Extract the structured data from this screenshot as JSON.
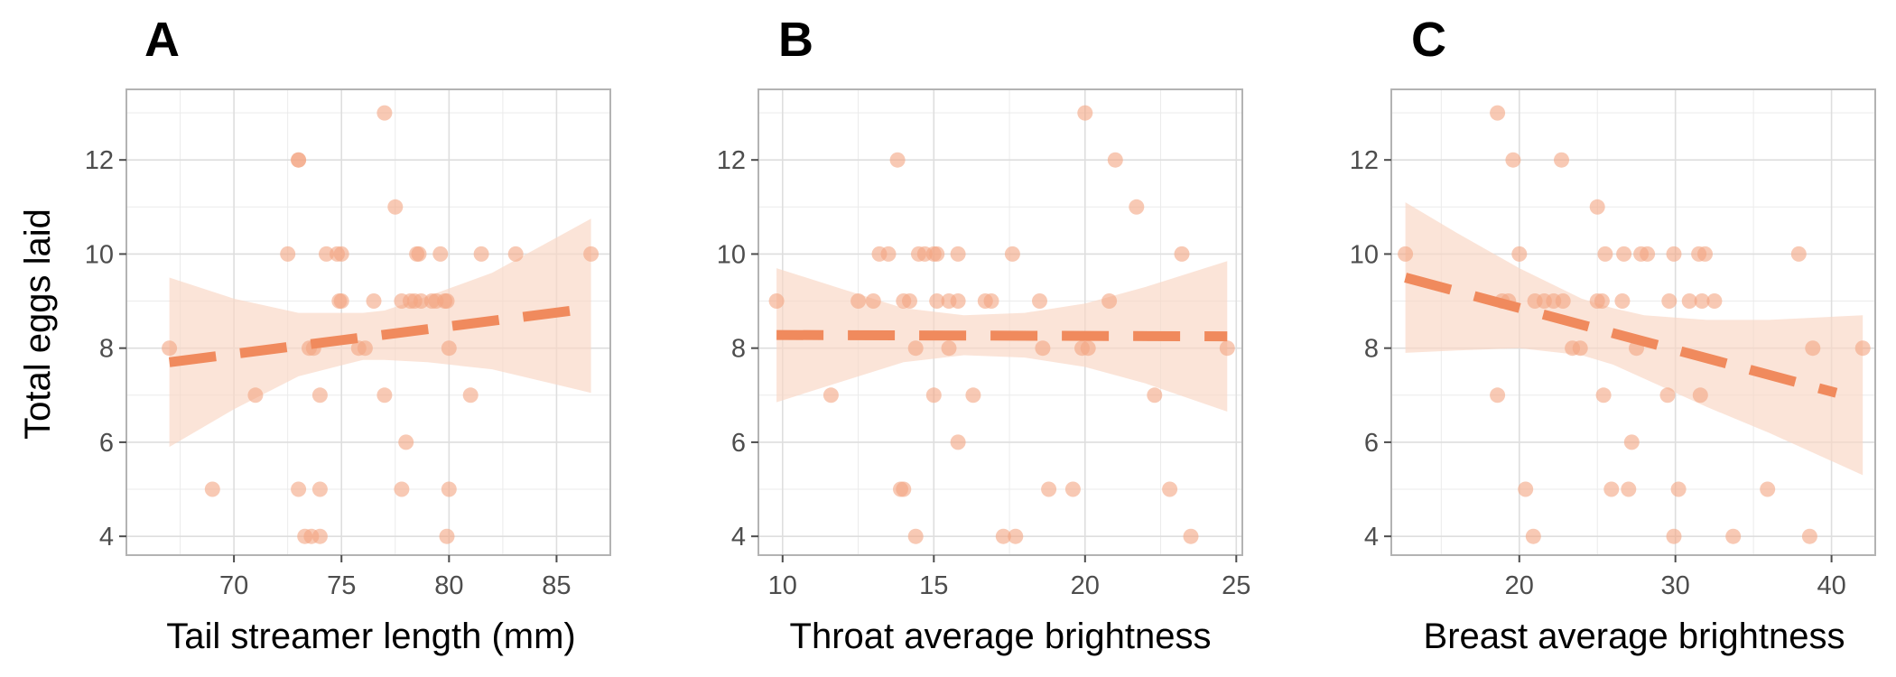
{
  "figure": {
    "ylabel": "Total eggs laid",
    "point_color": "#f4a582",
    "line_color": "#f08a5d",
    "band_color": "#f9d6c3"
  },
  "chart_data": [
    {
      "type": "scatter",
      "panel": "A",
      "xlabel": "Tail streamer length (mm)",
      "ylabel": "Total eggs laid",
      "xlim": [
        65,
        87.5
      ],
      "ylim": [
        3.6,
        13.5
      ],
      "xticks": [
        70,
        75,
        80,
        85
      ],
      "yticks": [
        4,
        6,
        8,
        10,
        12
      ],
      "grid": true,
      "points": [
        {
          "x": 67.0,
          "y": 8
        },
        {
          "x": 69.0,
          "y": 5
        },
        {
          "x": 71.0,
          "y": 7
        },
        {
          "x": 72.5,
          "y": 10
        },
        {
          "x": 73.0,
          "y": 12
        },
        {
          "x": 73.0,
          "y": 12
        },
        {
          "x": 73.0,
          "y": 5
        },
        {
          "x": 73.3,
          "y": 4
        },
        {
          "x": 73.6,
          "y": 4
        },
        {
          "x": 73.5,
          "y": 8
        },
        {
          "x": 73.7,
          "y": 8
        },
        {
          "x": 74.0,
          "y": 7
        },
        {
          "x": 74.0,
          "y": 5
        },
        {
          "x": 74.0,
          "y": 4
        },
        {
          "x": 74.3,
          "y": 10
        },
        {
          "x": 74.8,
          "y": 10
        },
        {
          "x": 75.0,
          "y": 10
        },
        {
          "x": 74.9,
          "y": 9
        },
        {
          "x": 75.0,
          "y": 9
        },
        {
          "x": 75.8,
          "y": 8
        },
        {
          "x": 76.1,
          "y": 8
        },
        {
          "x": 76.5,
          "y": 9
        },
        {
          "x": 77.0,
          "y": 13
        },
        {
          "x": 77.0,
          "y": 7
        },
        {
          "x": 77.5,
          "y": 11
        },
        {
          "x": 77.8,
          "y": 5
        },
        {
          "x": 77.8,
          "y": 9
        },
        {
          "x": 78.0,
          "y": 6
        },
        {
          "x": 78.2,
          "y": 9
        },
        {
          "x": 78.4,
          "y": 9
        },
        {
          "x": 78.5,
          "y": 10
        },
        {
          "x": 78.6,
          "y": 10
        },
        {
          "x": 78.7,
          "y": 9
        },
        {
          "x": 79.2,
          "y": 9
        },
        {
          "x": 79.4,
          "y": 9
        },
        {
          "x": 79.6,
          "y": 10
        },
        {
          "x": 79.8,
          "y": 9
        },
        {
          "x": 79.9,
          "y": 9
        },
        {
          "x": 79.9,
          "y": 4
        },
        {
          "x": 80.0,
          "y": 8
        },
        {
          "x": 80.0,
          "y": 5
        },
        {
          "x": 81.0,
          "y": 7
        },
        {
          "x": 81.5,
          "y": 10
        },
        {
          "x": 83.1,
          "y": 10
        },
        {
          "x": 86.6,
          "y": 10
        }
      ],
      "fit": {
        "x": [
          67.0,
          86.6
        ],
        "y": [
          7.7,
          8.85
        ]
      },
      "band": {
        "x": [
          67.0,
          70,
          73,
          76,
          77,
          79,
          82,
          86.6
        ],
        "lower": [
          5.9,
          6.7,
          7.4,
          7.75,
          7.75,
          7.7,
          7.55,
          7.05
        ],
        "upper": [
          9.5,
          9.05,
          8.75,
          8.75,
          8.8,
          9.1,
          9.6,
          10.75
        ]
      }
    },
    {
      "type": "scatter",
      "panel": "B",
      "xlabel": "Throat average brightness",
      "ylabel": "",
      "xlim": [
        9.2,
        25.2
      ],
      "ylim": [
        3.6,
        13.5
      ],
      "xticks": [
        10,
        15,
        20,
        25
      ],
      "yticks": [
        4,
        6,
        8,
        10,
        12
      ],
      "grid": true,
      "points": [
        {
          "x": 9.8,
          "y": 9
        },
        {
          "x": 11.6,
          "y": 7
        },
        {
          "x": 12.5,
          "y": 9
        },
        {
          "x": 13.0,
          "y": 9
        },
        {
          "x": 13.2,
          "y": 10
        },
        {
          "x": 13.5,
          "y": 10
        },
        {
          "x": 13.8,
          "y": 12
        },
        {
          "x": 13.9,
          "y": 5
        },
        {
          "x": 14.0,
          "y": 5
        },
        {
          "x": 14.0,
          "y": 9
        },
        {
          "x": 14.2,
          "y": 9
        },
        {
          "x": 14.5,
          "y": 10
        },
        {
          "x": 14.4,
          "y": 8
        },
        {
          "x": 14.4,
          "y": 4
        },
        {
          "x": 14.7,
          "y": 10
        },
        {
          "x": 15.0,
          "y": 10
        },
        {
          "x": 15.1,
          "y": 10
        },
        {
          "x": 15.0,
          "y": 7
        },
        {
          "x": 15.1,
          "y": 9
        },
        {
          "x": 15.5,
          "y": 8
        },
        {
          "x": 15.5,
          "y": 9
        },
        {
          "x": 15.8,
          "y": 9
        },
        {
          "x": 15.8,
          "y": 10
        },
        {
          "x": 15.8,
          "y": 6
        },
        {
          "x": 16.3,
          "y": 7
        },
        {
          "x": 16.7,
          "y": 9
        },
        {
          "x": 16.9,
          "y": 9
        },
        {
          "x": 17.3,
          "y": 4
        },
        {
          "x": 17.6,
          "y": 10
        },
        {
          "x": 17.7,
          "y": 4
        },
        {
          "x": 18.5,
          "y": 9
        },
        {
          "x": 18.6,
          "y": 8
        },
        {
          "x": 18.8,
          "y": 5
        },
        {
          "x": 19.6,
          "y": 5
        },
        {
          "x": 20.0,
          "y": 13
        },
        {
          "x": 19.9,
          "y": 8
        },
        {
          "x": 20.1,
          "y": 8
        },
        {
          "x": 20.8,
          "y": 9
        },
        {
          "x": 21.0,
          "y": 12
        },
        {
          "x": 21.7,
          "y": 11
        },
        {
          "x": 22.3,
          "y": 7
        },
        {
          "x": 22.8,
          "y": 5
        },
        {
          "x": 23.2,
          "y": 10
        },
        {
          "x": 23.5,
          "y": 4
        },
        {
          "x": 24.7,
          "y": 8
        }
      ],
      "fit": {
        "x": [
          9.8,
          24.7
        ],
        "y": [
          8.28,
          8.25
        ]
      },
      "band": {
        "x": [
          9.8,
          12,
          14,
          16,
          18,
          20,
          22,
          24.7
        ],
        "lower": [
          6.85,
          7.3,
          7.7,
          7.85,
          7.8,
          7.6,
          7.25,
          6.65
        ],
        "upper": [
          9.7,
          9.25,
          8.85,
          8.7,
          8.75,
          8.95,
          9.3,
          9.85
        ]
      }
    },
    {
      "type": "scatter",
      "panel": "C",
      "xlabel": "Breast average brightness",
      "ylabel": "",
      "xlim": [
        11.8,
        42.8
      ],
      "ylim": [
        3.6,
        13.5
      ],
      "xticks": [
        20,
        30,
        40
      ],
      "yticks": [
        4,
        6,
        8,
        10,
        12
      ],
      "grid": true,
      "points": [
        {
          "x": 12.7,
          "y": 10
        },
        {
          "x": 18.6,
          "y": 13
        },
        {
          "x": 18.6,
          "y": 7
        },
        {
          "x": 18.9,
          "y": 9
        },
        {
          "x": 19.3,
          "y": 9
        },
        {
          "x": 19.6,
          "y": 12
        },
        {
          "x": 20.0,
          "y": 10
        },
        {
          "x": 20.4,
          "y": 5
        },
        {
          "x": 20.9,
          "y": 4
        },
        {
          "x": 21.0,
          "y": 9
        },
        {
          "x": 21.6,
          "y": 9
        },
        {
          "x": 22.2,
          "y": 9
        },
        {
          "x": 22.7,
          "y": 12
        },
        {
          "x": 22.8,
          "y": 9
        },
        {
          "x": 23.4,
          "y": 8
        },
        {
          "x": 23.9,
          "y": 8
        },
        {
          "x": 25.0,
          "y": 11
        },
        {
          "x": 25.0,
          "y": 9
        },
        {
          "x": 25.3,
          "y": 9
        },
        {
          "x": 25.4,
          "y": 7
        },
        {
          "x": 25.5,
          "y": 10
        },
        {
          "x": 25.9,
          "y": 5
        },
        {
          "x": 26.6,
          "y": 9
        },
        {
          "x": 26.7,
          "y": 10
        },
        {
          "x": 27.0,
          "y": 5
        },
        {
          "x": 27.2,
          "y": 6
        },
        {
          "x": 27.5,
          "y": 8
        },
        {
          "x": 27.8,
          "y": 10
        },
        {
          "x": 28.2,
          "y": 10
        },
        {
          "x": 29.5,
          "y": 7
        },
        {
          "x": 29.6,
          "y": 9
        },
        {
          "x": 29.9,
          "y": 4
        },
        {
          "x": 29.9,
          "y": 10
        },
        {
          "x": 30.2,
          "y": 5
        },
        {
          "x": 30.9,
          "y": 9
        },
        {
          "x": 31.5,
          "y": 10
        },
        {
          "x": 31.6,
          "y": 7
        },
        {
          "x": 31.7,
          "y": 9
        },
        {
          "x": 31.9,
          "y": 10
        },
        {
          "x": 32.5,
          "y": 9
        },
        {
          "x": 33.7,
          "y": 4
        },
        {
          "x": 35.9,
          "y": 5
        },
        {
          "x": 37.9,
          "y": 10
        },
        {
          "x": 38.6,
          "y": 4
        },
        {
          "x": 38.8,
          "y": 8
        },
        {
          "x": 42.0,
          "y": 8
        }
      ],
      "fit": {
        "x": [
          12.7,
          40.3
        ],
        "y": [
          9.5,
          7.05
        ]
      },
      "band": {
        "x": [
          12.7,
          16,
          20,
          24,
          26,
          28,
          32,
          36,
          42.0
        ],
        "lower": [
          7.9,
          7.95,
          8.0,
          7.85,
          7.65,
          7.35,
          6.75,
          6.2,
          5.3
        ],
        "upper": [
          11.1,
          10.45,
          9.7,
          9.05,
          8.85,
          8.7,
          8.6,
          8.6,
          8.7
        ]
      }
    }
  ]
}
